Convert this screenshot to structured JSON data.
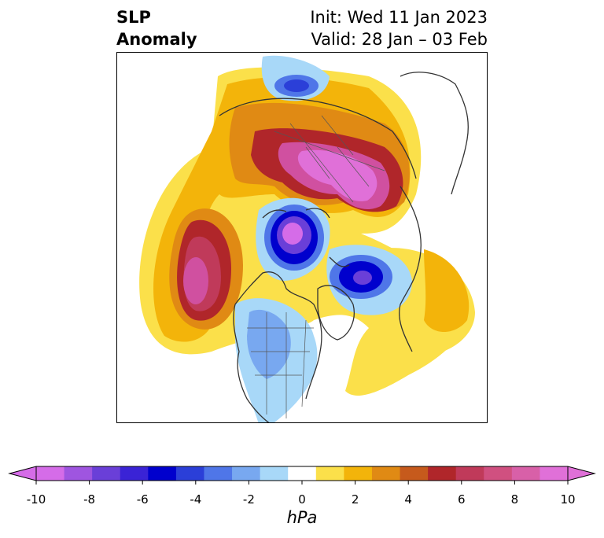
{
  "title": {
    "left_line1": "SLP",
    "left_line2": "Anomaly",
    "right_line1": "Init: Wed 11 Jan 2023",
    "right_line2": "Valid: 28 Jan – 03 Feb"
  },
  "colorbar": {
    "units": "hPa",
    "ticks": [
      "-10",
      "-8",
      "-6",
      "-4",
      "-2",
      "0",
      "2",
      "4",
      "6",
      "8",
      "10"
    ],
    "colors": [
      "#d56ce8",
      "#9f55e0",
      "#6a3fd8",
      "#3a23d6",
      "#0000cd",
      "#2b3fd8",
      "#4f76e8",
      "#78a8f0",
      "#a8d8f8",
      "#ffffff",
      "#fbe04a",
      "#f3b40a",
      "#e08a14",
      "#c65a1c",
      "#b0262a",
      "#c03a5a",
      "#d05080",
      "#d860a8",
      "#e070d8"
    ],
    "extend": "both"
  },
  "map": {
    "projection": "north-polar-stereographic",
    "positive_color": "#e070d8",
    "negative_color": "#0000cd",
    "coastline_color": "#333333"
  }
}
